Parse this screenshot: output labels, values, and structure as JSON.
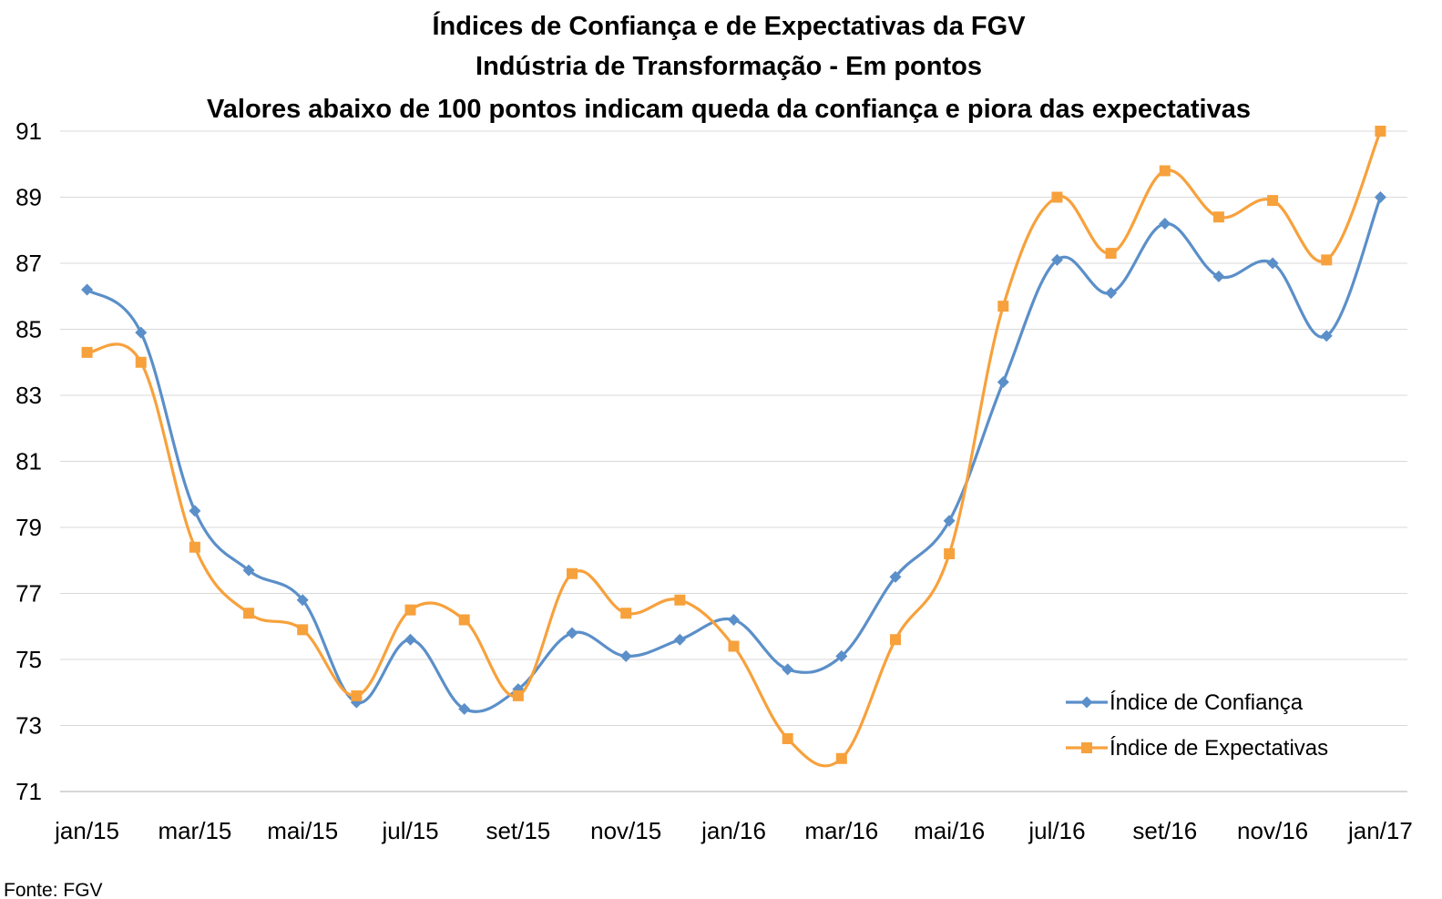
{
  "chart_data": {
    "type": "line",
    "title": "Índices de Confiança e de Expectativas da FGV",
    "subtitle": "Indústria de Transformação - Em pontos",
    "subtitle2": "Valores abaixo de 100 pontos indicam queda da confiança e piora das expectativas",
    "source": "Fonte: FGV",
    "ylim": [
      71,
      91
    ],
    "yticks": [
      71,
      73,
      75,
      77,
      79,
      81,
      83,
      85,
      87,
      89,
      91
    ],
    "ytick_labels": [
      "71",
      "73",
      "75",
      "77",
      "79",
      "81",
      "83",
      "85",
      "87",
      "89",
      "91"
    ],
    "grid": true,
    "legend_position": "bottom-right",
    "x": [
      "jan/15",
      "fev/15",
      "mar/15",
      "abr/15",
      "mai/15",
      "jun/15",
      "jul/15",
      "ago/15",
      "set/15",
      "out/15",
      "nov/15",
      "dez/15",
      "jan/16",
      "fev/16",
      "mar/16",
      "abr/16",
      "mai/16",
      "jun/16",
      "jul/16",
      "ago/16",
      "set/16",
      "out/16",
      "nov/16",
      "dez/16",
      "jan/17"
    ],
    "xtick_labels": [
      "jan/15",
      "mar/15",
      "mai/15",
      "jul/15",
      "set/15",
      "nov/15",
      "jan/16",
      "mar/16",
      "mai/16",
      "jul/16",
      "set/16",
      "nov/16",
      "jan/17"
    ],
    "series": [
      {
        "name": "Índice de Confiança",
        "color": "#5b8fc9",
        "marker": "diamond",
        "values": [
          86.2,
          84.9,
          79.5,
          77.7,
          76.8,
          73.7,
          75.6,
          73.5,
          74.1,
          75.8,
          75.1,
          75.6,
          76.2,
          74.7,
          75.1,
          77.5,
          79.2,
          83.4,
          87.1,
          86.1,
          88.2,
          86.6,
          87.0,
          84.8,
          89.0
        ]
      },
      {
        "name": "Índice de Expectativas",
        "color": "#f7a13c",
        "marker": "square",
        "values": [
          84.3,
          84.0,
          78.4,
          76.4,
          75.9,
          73.9,
          76.5,
          76.2,
          73.9,
          77.6,
          76.4,
          76.8,
          75.4,
          72.6,
          72.0,
          75.6,
          78.2,
          85.7,
          89.0,
          87.3,
          89.8,
          88.4,
          88.9,
          87.1,
          91.0
        ]
      }
    ]
  }
}
